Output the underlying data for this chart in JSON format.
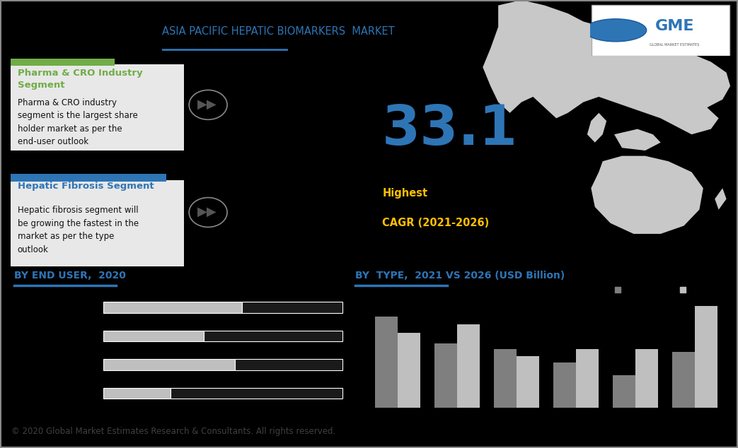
{
  "title": "ASIA PACIFIC HEPATIC BIOMARKERS  MARKET",
  "title_color": "#2e75b6",
  "background_color": "#000000",
  "top_left_title1": "Pharma & CRO Industry\nSegment",
  "top_left_title1_color": "#70ad47",
  "top_left_bar1_color": "#70ad47",
  "top_left_body1": "Pharma & CRO industry\nsegment is the largest share\nholder market as per the\nend-user outlook",
  "top_left_title2": "Hepatic Fibrosis Segment",
  "top_left_title2_color": "#2e75b6",
  "top_left_bar2_color": "#2e75b6",
  "top_left_body2": "Hepatic fibrosis segment will\nbe growing the fastest in the\nmarket as per the type\noutlook",
  "big_number": "33.1",
  "big_number_color": "#2e75b6",
  "big_number_label1": "Highest",
  "big_number_label2": "CAGR (2021-2026)",
  "big_number_label_color": "#ffc000",
  "section1_title": "BY END USER,  2020",
  "section1_title_color": "#2e75b6",
  "section2_title": "BY  TYPE,  2021 VS 2026 (USD Billion)",
  "section2_title_color": "#2e75b6",
  "end_user_bars": [
    {
      "light": 0.58,
      "dark": 0.42
    },
    {
      "light": 0.42,
      "dark": 0.58
    },
    {
      "light": 0.55,
      "dark": 0.45
    },
    {
      "light": 0.28,
      "dark": 0.72
    }
  ],
  "type_bars_2021": [
    0.85,
    0.6,
    0.55,
    0.42,
    0.3,
    0.52
  ],
  "type_bars_2026": [
    0.7,
    0.78,
    0.48,
    0.55,
    0.55,
    0.95
  ],
  "bar_light_color": "#bfbfbf",
  "bar_dark_color": "#1a1a1a",
  "bar_2021_color": "#7f7f7f",
  "bar_2026_color": "#bfbfbf",
  "divider_color": "#2e75b6",
  "footer_text": "© 2020 Global Market Estimates Research & Consultants. All rights reserved.",
  "footer_color": "#404040",
  "card_bg": "#e8e8e8",
  "panel_bg": "#f0f0f0",
  "vline_color": "#555555",
  "arrow_color": "#555555"
}
